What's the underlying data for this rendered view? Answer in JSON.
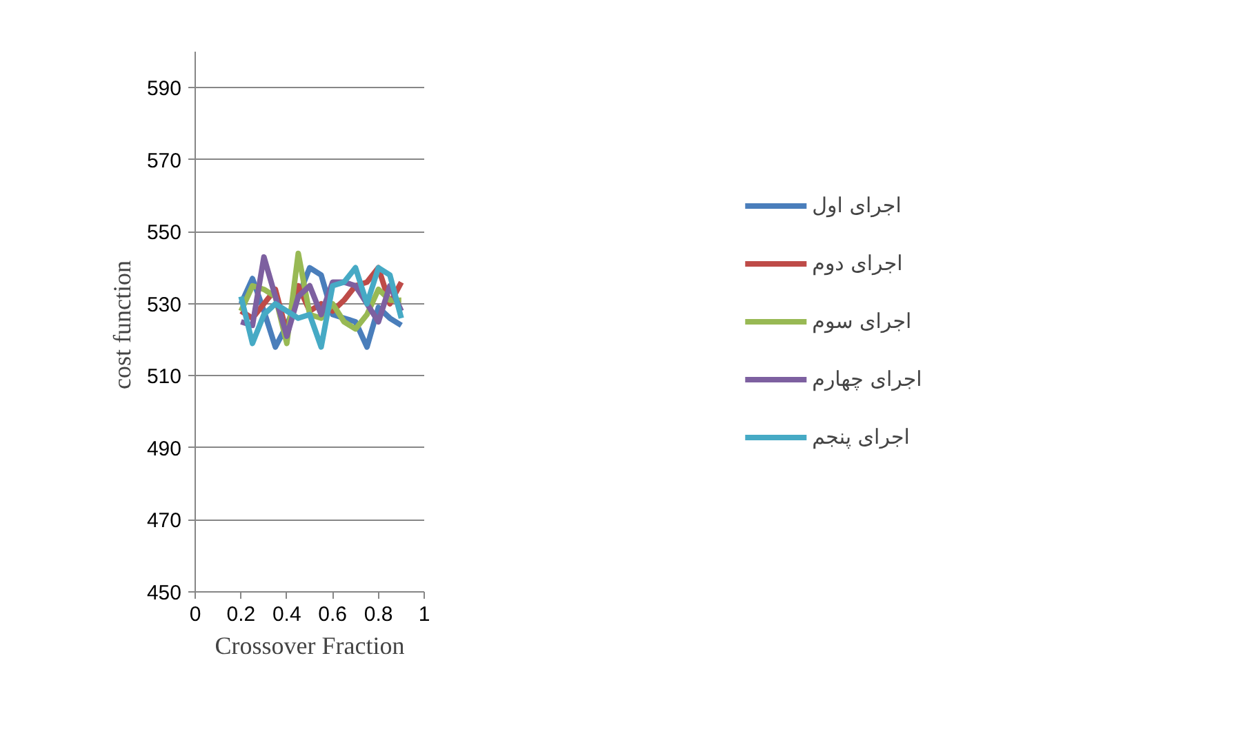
{
  "chart_data": {
    "type": "line",
    "xlabel": "Crossover Fraction",
    "ylabel": "cost  function",
    "x": [
      0.2,
      0.25,
      0.3,
      0.35,
      0.4,
      0.45,
      0.5,
      0.55,
      0.6,
      0.65,
      0.7,
      0.75,
      0.8,
      0.85,
      0.9
    ],
    "xlim": [
      0,
      1
    ],
    "xticks": [
      0,
      0.2,
      0.4,
      0.6,
      0.8,
      1
    ],
    "ylim": [
      450,
      600
    ],
    "yticks": [
      450,
      470,
      490,
      510,
      530,
      550,
      570,
      590
    ],
    "grid": "y",
    "legend": "right",
    "marker": "none",
    "line_style": "solid",
    "series": [
      {
        "name": "اجرای اول",
        "color": "#4a7ebb",
        "values": [
          530,
          537,
          528,
          518,
          524,
          532,
          540,
          538,
          527,
          526,
          525,
          518,
          529,
          526,
          524
        ]
      },
      {
        "name": "اجرای دوم",
        "color": "#be4b48",
        "values": [
          528,
          526,
          530,
          534,
          522,
          535,
          528,
          530,
          528,
          531,
          535,
          536,
          540,
          530,
          536
        ]
      },
      {
        "name": "اجرای سوم",
        "color": "#98b954",
        "values": [
          528,
          535,
          534,
          532,
          519,
          544,
          527,
          526,
          530,
          525,
          523,
          527,
          534,
          531,
          531
        ]
      },
      {
        "name": "اجرای چهارم",
        "color": "#7d60a0",
        "values": [
          525,
          524,
          543,
          532,
          521,
          532,
          535,
          527,
          536,
          536,
          535,
          530,
          525,
          535,
          528
        ]
      },
      {
        "name": "اجرای پنجم",
        "color": "#46aac5",
        "values": [
          532,
          519,
          527,
          530,
          528,
          526,
          527,
          518,
          535,
          536,
          540,
          530,
          540,
          538,
          526
        ]
      }
    ]
  }
}
